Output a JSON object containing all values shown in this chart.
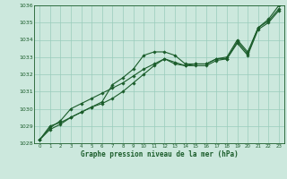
{
  "bg_color": "#cce8dd",
  "grid_color": "#99ccbb",
  "line_color": "#1a5c2a",
  "title": "Graphe pression niveau de la mer (hPa)",
  "xlim": [
    -0.5,
    23.5
  ],
  "ylim": [
    1028,
    1036
  ],
  "xticks": [
    0,
    1,
    2,
    3,
    4,
    5,
    6,
    7,
    8,
    9,
    10,
    11,
    12,
    13,
    14,
    15,
    16,
    17,
    18,
    19,
    20,
    21,
    22,
    23
  ],
  "yticks": [
    1028,
    1029,
    1030,
    1031,
    1032,
    1033,
    1034,
    1035,
    1036
  ],
  "line1_x": [
    0,
    1,
    2,
    3,
    4,
    5,
    6,
    7,
    8,
    9,
    10,
    11,
    12,
    13,
    14,
    15,
    16,
    17,
    18,
    19,
    20,
    21,
    22,
    23
  ],
  "line1_y": [
    1028.2,
    1029.0,
    1029.2,
    1029.5,
    1029.8,
    1030.1,
    1030.4,
    1031.4,
    1031.8,
    1032.3,
    1033.1,
    1033.3,
    1033.3,
    1033.1,
    1032.6,
    1032.6,
    1032.6,
    1032.9,
    1032.9,
    1033.9,
    1033.2,
    1034.7,
    1035.1,
    1035.8
  ],
  "line2_x": [
    0,
    1,
    2,
    3,
    4,
    5,
    6,
    7,
    8,
    9,
    10,
    11,
    12,
    13,
    14,
    15,
    16,
    17,
    18,
    19,
    20,
    21,
    22,
    23
  ],
  "line2_y": [
    1028.2,
    1028.8,
    1029.1,
    1029.5,
    1029.8,
    1030.1,
    1030.3,
    1030.6,
    1031.0,
    1031.5,
    1032.0,
    1032.5,
    1032.9,
    1032.7,
    1032.5,
    1032.5,
    1032.5,
    1032.8,
    1032.9,
    1033.8,
    1033.1,
    1034.6,
    1035.0,
    1035.7
  ],
  "line3_x": [
    0,
    1,
    2,
    3,
    4,
    5,
    6,
    7,
    8,
    9,
    10,
    11,
    12,
    13,
    14,
    15,
    16,
    17,
    18,
    19,
    20,
    21,
    22,
    23
  ],
  "line3_y": [
    1028.2,
    1028.9,
    1029.3,
    1030.0,
    1030.3,
    1030.6,
    1030.9,
    1031.2,
    1031.5,
    1031.9,
    1032.3,
    1032.6,
    1032.9,
    1032.6,
    1032.5,
    1032.6,
    1032.6,
    1032.9,
    1033.0,
    1034.0,
    1033.3,
    1034.7,
    1035.2,
    1036.0
  ]
}
